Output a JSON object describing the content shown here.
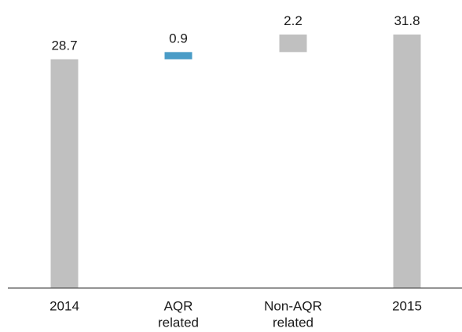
{
  "chart_data": {
    "type": "bar",
    "subtype": "waterfall",
    "categories": [
      [
        "2014"
      ],
      [
        "AQR",
        "related"
      ],
      [
        "Non-AQR",
        "related"
      ],
      [
        "2015"
      ]
    ],
    "steps": [
      {
        "kind": "total",
        "value": 28.7,
        "label": "28.7",
        "color": "#c0c0c0"
      },
      {
        "kind": "delta",
        "value": 0.9,
        "label": "0.9",
        "color": "#4a9cc7"
      },
      {
        "kind": "delta",
        "value": 2.2,
        "label": "2.2",
        "color": "#c0c0c0"
      },
      {
        "kind": "total",
        "value": 31.8,
        "label": "31.8",
        "color": "#c0c0c0"
      }
    ],
    "ylim": [
      0,
      31.8
    ],
    "grid": false,
    "legend": "none",
    "title": "",
    "xlabel": "",
    "ylabel": ""
  },
  "colors": {
    "total_bar": "#c0c0c0",
    "aqr_bar": "#4a9cc7",
    "baseline": "#555555",
    "text": "#1a1a1a"
  }
}
